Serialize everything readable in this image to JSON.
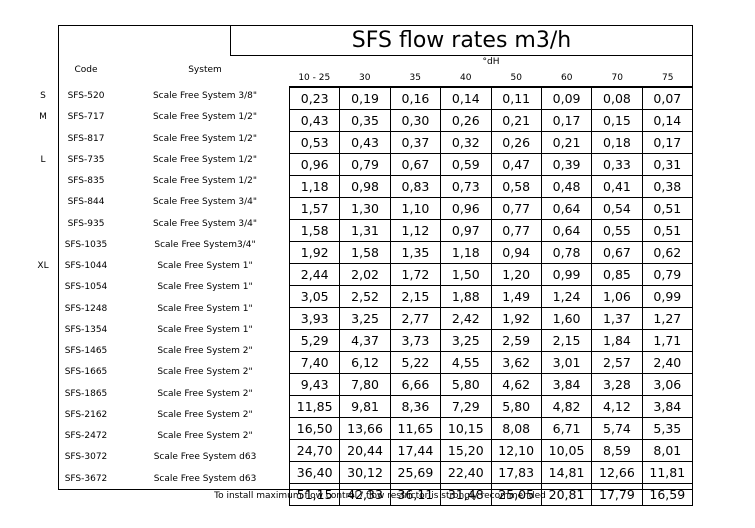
{
  "title": "SFS flow rates m3/h",
  "headers": {
    "code": "Code",
    "system": "System",
    "unit": "°dH",
    "columns": [
      "10 - 25",
      "30",
      "35",
      "40",
      "50",
      "60",
      "70",
      "75"
    ]
  },
  "rows": [
    {
      "size": "S",
      "code": "SFS-520",
      "system": "Scale Free System 3/8\"",
      "values": [
        "0,23",
        "0,19",
        "0,16",
        "0,14",
        "0,11",
        "0,09",
        "0,08",
        "0,07"
      ]
    },
    {
      "size": "M",
      "code": "SFS-717",
      "system": "Scale Free System 1/2\"",
      "values": [
        "0,43",
        "0,35",
        "0,30",
        "0,26",
        "0,21",
        "0,17",
        "0,15",
        "0,14"
      ]
    },
    {
      "size": "",
      "code": "SFS-817",
      "system": "Scale Free System 1/2\"",
      "values": [
        "0,53",
        "0,43",
        "0,37",
        "0,32",
        "0,26",
        "0,21",
        "0,18",
        "0,17"
      ]
    },
    {
      "size": "L",
      "code": "SFS-735",
      "system": "Scale Free System 1/2\"",
      "values": [
        "0,96",
        "0,79",
        "0,67",
        "0,59",
        "0,47",
        "0,39",
        "0,33",
        "0,31"
      ]
    },
    {
      "size": "",
      "code": "SFS-835",
      "system": "Scale Free System 1/2\"",
      "values": [
        "1,18",
        "0,98",
        "0,83",
        "0,73",
        "0,58",
        "0,48",
        "0,41",
        "0,38"
      ]
    },
    {
      "size": "",
      "code": "SFS-844",
      "system": "Scale Free System 3/4\"",
      "values": [
        "1,57",
        "1,30",
        "1,10",
        "0,96",
        "0,77",
        "0,64",
        "0,54",
        "0,51"
      ]
    },
    {
      "size": "",
      "code": "SFS-935",
      "system": "Scale Free System 3/4\"",
      "values": [
        "1,58",
        "1,31",
        "1,12",
        "0,97",
        "0,77",
        "0,64",
        "0,55",
        "0,51"
      ]
    },
    {
      "size": "",
      "code": "SFS-1035",
      "system": "Scale Free System3/4\"",
      "values": [
        "1,92",
        "1,58",
        "1,35",
        "1,18",
        "0,94",
        "0,78",
        "0,67",
        "0,62"
      ]
    },
    {
      "size": "XL",
      "code": "SFS-1044",
      "system": "Scale Free System  1\"",
      "values": [
        "2,44",
        "2,02",
        "1,72",
        "1,50",
        "1,20",
        "0,99",
        "0,85",
        "0,79"
      ]
    },
    {
      "size": "",
      "code": "SFS-1054",
      "system": "Scale Free System 1\"",
      "values": [
        "3,05",
        "2,52",
        "2,15",
        "1,88",
        "1,49",
        "1,24",
        "1,06",
        "0,99"
      ]
    },
    {
      "size": "",
      "code": "SFS-1248",
      "system": "Scale Free System 1\"",
      "values": [
        "3,93",
        "3,25",
        "2,77",
        "2,42",
        "1,92",
        "1,60",
        "1,37",
        "1,27"
      ]
    },
    {
      "size": "",
      "code": "SFS-1354",
      "system": "Scale Free System 1\"",
      "values": [
        "5,29",
        "4,37",
        "3,73",
        "3,25",
        "2,59",
        "2,15",
        "1,84",
        "1,71"
      ]
    },
    {
      "size": "",
      "code": "SFS-1465",
      "system": "Scale Free System  2\"",
      "values": [
        "7,40",
        "6,12",
        "5,22",
        "4,55",
        "3,62",
        "3,01",
        "2,57",
        "2,40"
      ]
    },
    {
      "size": "",
      "code": "SFS-1665",
      "system": "Scale Free System 2\"",
      "values": [
        "9,43",
        "7,80",
        "6,66",
        "5,80",
        "4,62",
        "3,84",
        "3,28",
        "3,06"
      ]
    },
    {
      "size": "",
      "code": "SFS-1865",
      "system": "Scale Free System 2\"",
      "values": [
        "11,85",
        "9,81",
        "8,36",
        "7,29",
        "5,80",
        "4,82",
        "4,12",
        "3,84"
      ]
    },
    {
      "size": "",
      "code": "SFS-2162",
      "system": "Scale Free System 2\"",
      "values": [
        "16,50",
        "13,66",
        "11,65",
        "10,15",
        "8,08",
        "6,71",
        "5,74",
        "5,35"
      ]
    },
    {
      "size": "",
      "code": "SFS-2472",
      "system": "Scale Free System 2\"",
      "values": [
        "24,70",
        "20,44",
        "17,44",
        "15,20",
        "12,10",
        "10,05",
        "8,59",
        "8,01"
      ]
    },
    {
      "size": "",
      "code": "SFS-3072",
      "system": "Scale Free System d63",
      "values": [
        "36,40",
        "30,12",
        "25,69",
        "22,40",
        "17,83",
        "14,81",
        "12,66",
        "11,81"
      ]
    },
    {
      "size": "",
      "code": "SFS-3672",
      "system": "Scale Free System d63",
      "values": [
        "51,15",
        "42,33",
        "36,11",
        "31,48",
        "25,05",
        "20,81",
        "17,79",
        "16,59"
      ]
    }
  ],
  "note": "To install maximum flow control / flow restrictor is strongly recommended"
}
